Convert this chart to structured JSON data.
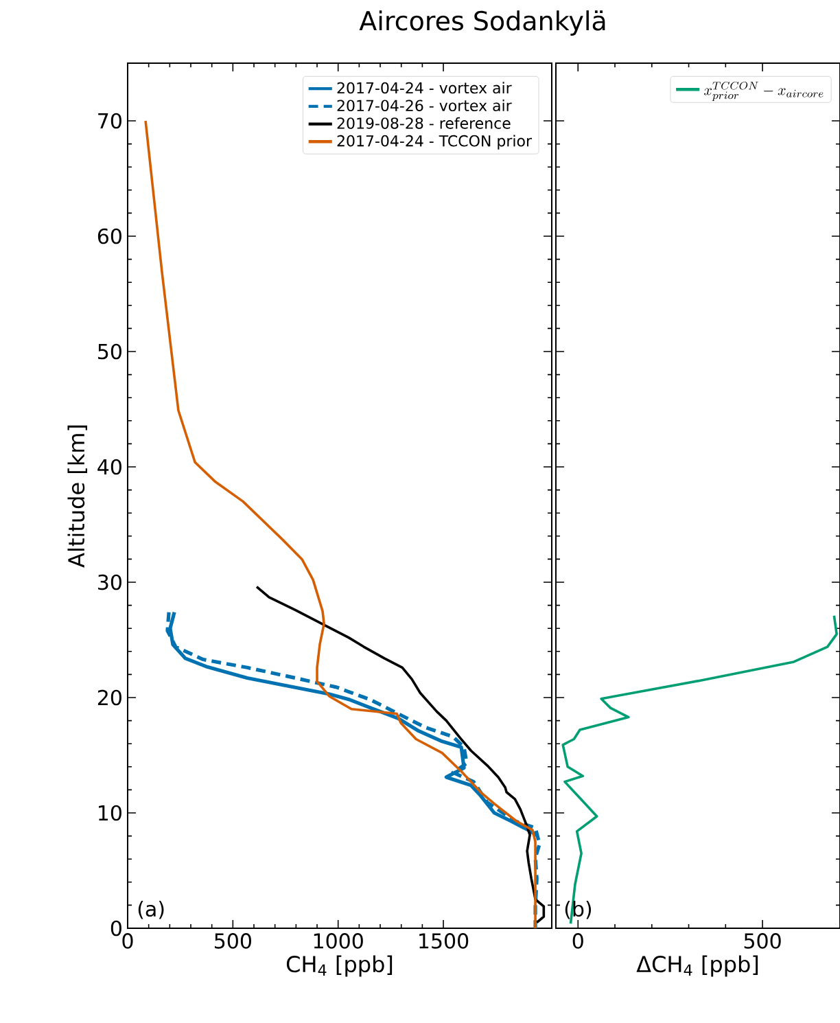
{
  "chart_data": [
    {
      "type": "line",
      "title": "Aircores Sodankylä",
      "xlabel": "CH$_{4}$ [ppb]",
      "ylabel": "Altitude [km]",
      "xlim": [
        0,
        2015
      ],
      "ylim": [
        0,
        75
      ],
      "xticks": [
        0,
        500,
        1000,
        1500
      ],
      "yticks": [
        0,
        10,
        20,
        30,
        40,
        50,
        60,
        70
      ],
      "legend": "top right",
      "annotations": [
        "(a)"
      ],
      "series": [
        {
          "name": "2017-04-24 - vortex air",
          "color": "#0072b2",
          "line_style": "solid",
          "x": [
            222,
            202,
            215,
            274,
            372,
            568,
            763,
            959,
            1057,
            1155,
            1285,
            1383,
            1494,
            1585,
            1598,
            1514,
            1631,
            1677,
            1742,
            1820,
            1905,
            1950
          ],
          "values": [
            27.4,
            26,
            24.6,
            23.4,
            22.7,
            21.7,
            21,
            20.3,
            19.8,
            19.1,
            18.2,
            17.1,
            16.2,
            15.7,
            13.9,
            13.1,
            12.4,
            11.5,
            10,
            9.3,
            8.5,
            8.0
          ]
        },
        {
          "name": "2017-04-26 - vortex air",
          "color": "#0072b2",
          "line_style": "dashed",
          "x": [
            196,
            189,
            228,
            359,
            568,
            796,
            992,
            1155,
            1285,
            1416,
            1546,
            1598,
            1611,
            1546,
            1644,
            1709,
            1840,
            1937,
            1957,
            1937,
            1944,
            1937,
            1937
          ],
          "values": [
            27.4,
            25.8,
            24.4,
            23.3,
            22.6,
            21.7,
            20.9,
            19.8,
            18.6,
            17.4,
            16.6,
            15.7,
            14.3,
            13.5,
            12.7,
            10.9,
            9.3,
            8.7,
            7.3,
            6.1,
            4.3,
            1.9,
            0
          ]
        },
        {
          "name": "2019-08-28 - reference",
          "color": "#000000",
          "line_style": "solid",
          "x": [
            613,
            672,
            796,
            933,
            1050,
            1122,
            1220,
            1305,
            1350,
            1390,
            1468,
            1514,
            1580,
            1631,
            1709,
            1761,
            1794,
            1800,
            1840,
            1866,
            1892,
            1911,
            1898,
            1905,
            1918,
            1937,
            1977,
            1977,
            1944
          ],
          "values": [
            29.6,
            28.7,
            27.6,
            26.3,
            25.2,
            24.4,
            23.4,
            22.6,
            21.6,
            20.4,
            18.8,
            18,
            16.5,
            15.4,
            14.1,
            13.1,
            12.2,
            11.8,
            11.2,
            10.3,
            9.1,
            8.1,
            6.7,
            5.7,
            4.3,
            2.5,
            1.9,
            1,
            0.5
          ]
        },
        {
          "name": "2017-04-24 - TCCON prior",
          "color": "#d55e00",
          "line_style": "solid",
          "x": [
            85,
            163,
            241,
            320,
            417,
            548,
            730,
            828,
            881,
            926,
            933,
            913,
            900,
            900,
            959,
            1064,
            1279,
            1298,
            1370,
            1494,
            1585,
            1683,
            1742,
            1846,
            1924,
            1937,
            1937
          ],
          "values": [
            70,
            56.9,
            44.9,
            40.4,
            38.7,
            37,
            33.8,
            32,
            30.2,
            27.5,
            26.4,
            24.6,
            22.6,
            21.4,
            20.1,
            19,
            18.6,
            17.8,
            16.4,
            15.2,
            13.6,
            11.7,
            10.8,
            9.3,
            8.5,
            7.5,
            0
          ]
        }
      ]
    },
    {
      "type": "line",
      "xlabel": "ΔCH$_{4}$ [ppb]",
      "xlim": [
        -60,
        710
      ],
      "ylim": [
        0,
        75
      ],
      "xticks": [
        0,
        500
      ],
      "yticks": [
        0,
        10,
        20,
        30,
        40,
        50,
        60,
        70
      ],
      "tick_labels": "x",
      "legend": "top right",
      "annotations": [
        "(b)"
      ],
      "series": [
        {
          "name": "x_{prior}^{TCCON}-x_{aircore}",
          "color": "#009e73",
          "line_style": "solid",
          "x": [
            694,
            701,
            676,
            585,
            336,
            63,
            88,
            137,
            5,
            -11,
            -41,
            -28,
            13,
            -36,
            5,
            51,
            -3,
            9,
            -8,
            -20
          ],
          "values": [
            27.1,
            25.5,
            24.4,
            23.1,
            21.5,
            19.9,
            19.1,
            18.3,
            17.2,
            16.4,
            15.9,
            14.0,
            13.2,
            12.7,
            11.3,
            9.7,
            8.4,
            6.5,
            3.8,
            0.4
          ]
        }
      ]
    }
  ]
}
